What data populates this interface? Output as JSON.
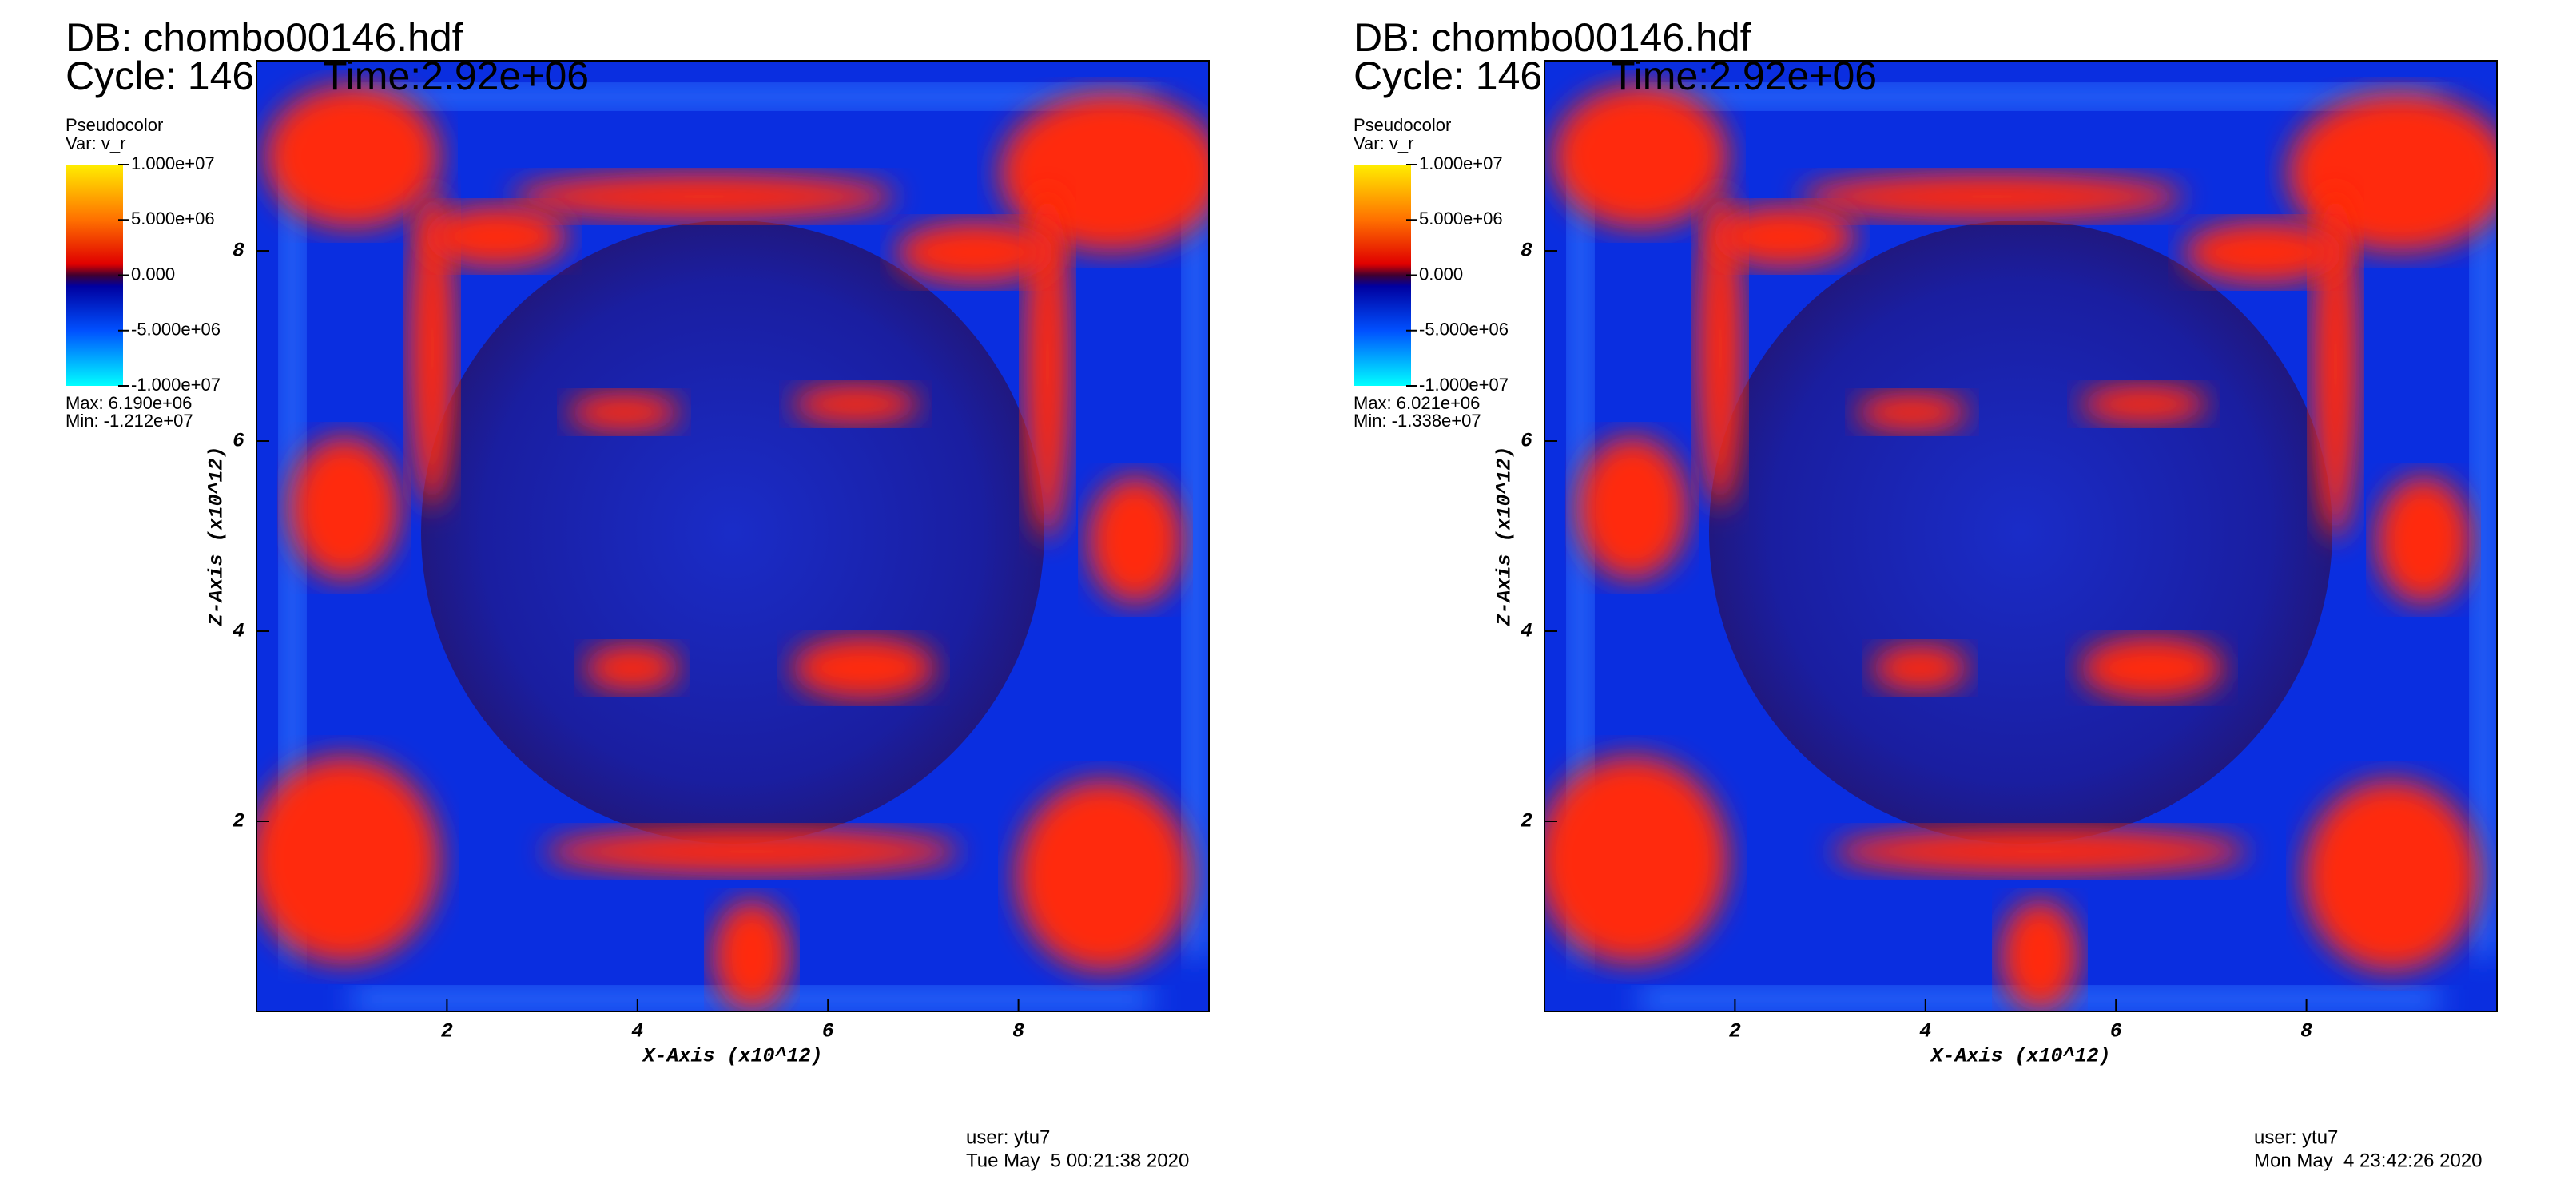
{
  "chart_data": [
    {
      "type": "heatmap",
      "title": "DB: chombo00146.hdf",
      "cycle": "Cycle: 146",
      "time": "Time:2.92e+06",
      "legend_title": "Pseudocolor",
      "variable": "Var: v_r",
      "clim": [
        -10000000,
        10000000
      ],
      "cticks": [
        {
          "value": 10000000,
          "label": "1.000e+07"
        },
        {
          "value": 5000000,
          "label": "5.000e+06"
        },
        {
          "value": 0,
          "label": "0.000"
        },
        {
          "value": -5000000,
          "label": "-5.000e+06"
        },
        {
          "value": -10000000,
          "label": "-1.000e+07"
        }
      ],
      "max_text": "Max:  6.190e+06",
      "min_text": "Min: -1.212e+07",
      "xlabel": "X-Axis (x10^12)",
      "ylabel": "Z-Axis (x10^12)",
      "xlim": [
        0,
        10
      ],
      "ylim": [
        0,
        10
      ],
      "xticks": [
        2,
        4,
        6,
        8
      ],
      "yticks": [
        2,
        4,
        6,
        8
      ],
      "user": "user: ytu7",
      "date": "Tue May  5 00:21:38 2020"
    },
    {
      "type": "heatmap",
      "title": "DB: chombo00146.hdf",
      "cycle": "Cycle: 146",
      "time": "Time:2.92e+06",
      "legend_title": "Pseudocolor",
      "variable": "Var: v_r",
      "clim": [
        -10000000,
        10000000
      ],
      "cticks": [
        {
          "value": 10000000,
          "label": "1.000e+07"
        },
        {
          "value": 5000000,
          "label": "5.000e+06"
        },
        {
          "value": 0,
          "label": "0.000"
        },
        {
          "value": -5000000,
          "label": "-5.000e+06"
        },
        {
          "value": -10000000,
          "label": "-1.000e+07"
        }
      ],
      "max_text": "Max:  6.021e+06",
      "min_text": "Min: -1.338e+07",
      "xlabel": "X-Axis (x10^12)",
      "ylabel": "Z-Axis (x10^12)",
      "xlim": [
        0,
        10
      ],
      "ylim": [
        0,
        10
      ],
      "xticks": [
        2,
        4,
        6,
        8
      ],
      "yticks": [
        2,
        4,
        6,
        8
      ],
      "user": "user: ytu7",
      "date": "Mon May  4 23:42:26 2020"
    }
  ]
}
